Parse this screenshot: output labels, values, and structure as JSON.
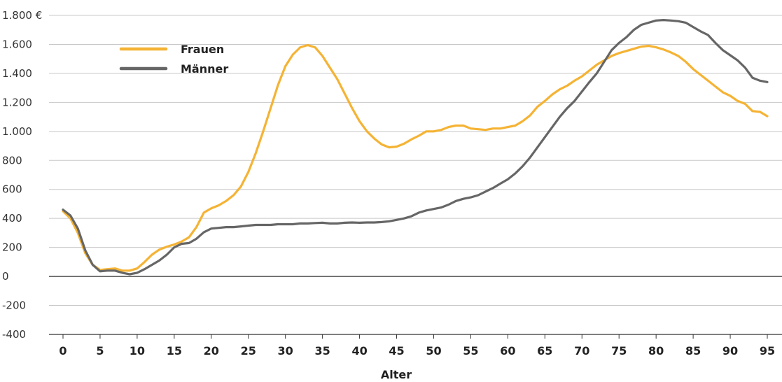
{
  "chart_data": {
    "type": "line",
    "title": "",
    "xlabel": "Alter",
    "ylabel": "",
    "ylim": [
      -400,
      1800
    ],
    "yticks": [
      -400,
      -200,
      0,
      200,
      400,
      600,
      800,
      1000,
      1200,
      1400,
      1600,
      1800
    ],
    "ytick_labels": [
      "-400",
      "-200",
      "0",
      "200",
      "400",
      "600",
      "800",
      "1.000",
      "1.200",
      "1.400",
      "1.600",
      "1.800 €"
    ],
    "xlim": [
      0,
      95
    ],
    "xticks": [
      0,
      5,
      10,
      15,
      20,
      25,
      30,
      35,
      40,
      45,
      50,
      55,
      60,
      65,
      70,
      75,
      80,
      85,
      90,
      95
    ],
    "xtick_labels": [
      "0",
      "5",
      "10",
      "15",
      "20",
      "25",
      "30",
      "35",
      "40",
      "45",
      "50",
      "55",
      "60",
      "65",
      "70",
      "75",
      "80",
      "85",
      "90",
      "95"
    ],
    "grid": "horizontal",
    "legend_position": "top-left",
    "series": [
      {
        "name": "Frauen",
        "color": "#f5b334",
        "x": [
          0,
          1,
          2,
          3,
          4,
          5,
          6,
          7,
          8,
          9,
          10,
          11,
          12,
          13,
          14,
          15,
          16,
          17,
          18,
          19,
          20,
          21,
          22,
          23,
          24,
          25,
          26,
          27,
          28,
          29,
          30,
          31,
          32,
          33,
          34,
          35,
          36,
          37,
          38,
          39,
          40,
          41,
          42,
          43,
          44,
          45,
          46,
          47,
          48,
          49,
          50,
          51,
          52,
          53,
          54,
          55,
          56,
          57,
          58,
          59,
          60,
          61,
          62,
          63,
          64,
          65,
          66,
          67,
          68,
          69,
          70,
          71,
          72,
          73,
          74,
          75,
          76,
          77,
          78,
          79,
          80,
          81,
          82,
          83,
          84,
          85,
          86,
          87,
          88,
          89,
          90,
          91,
          92,
          93,
          94,
          95
        ],
        "values": [
          450,
          400,
          300,
          160,
          80,
          45,
          50,
          55,
          40,
          40,
          55,
          100,
          150,
          185,
          205,
          220,
          240,
          270,
          340,
          440,
          470,
          490,
          520,
          560,
          620,
          720,
          850,
          1000,
          1160,
          1320,
          1450,
          1530,
          1580,
          1595,
          1580,
          1520,
          1440,
          1360,
          1260,
          1160,
          1070,
          1000,
          950,
          910,
          890,
          895,
          915,
          945,
          970,
          1000,
          1000,
          1010,
          1030,
          1040,
          1040,
          1020,
          1015,
          1010,
          1020,
          1020,
          1030,
          1040,
          1070,
          1110,
          1170,
          1210,
          1255,
          1290,
          1315,
          1350,
          1380,
          1420,
          1460,
          1490,
          1520,
          1540,
          1555,
          1570,
          1585,
          1590,
          1580,
          1565,
          1545,
          1520,
          1480,
          1430,
          1390,
          1350,
          1310,
          1270,
          1245,
          1210,
          1190,
          1140,
          1135,
          1105
        ]
      },
      {
        "name": "Männer",
        "color": "#666666",
        "x": [
          0,
          1,
          2,
          3,
          4,
          5,
          6,
          7,
          8,
          9,
          10,
          11,
          12,
          13,
          14,
          15,
          16,
          17,
          18,
          19,
          20,
          21,
          22,
          23,
          24,
          25,
          26,
          27,
          28,
          29,
          30,
          31,
          32,
          33,
          34,
          35,
          36,
          37,
          38,
          39,
          40,
          41,
          42,
          43,
          44,
          45,
          46,
          47,
          48,
          49,
          50,
          51,
          52,
          53,
          54,
          55,
          56,
          57,
          58,
          59,
          60,
          61,
          62,
          63,
          64,
          65,
          66,
          67,
          68,
          69,
          70,
          71,
          72,
          73,
          74,
          75,
          76,
          77,
          78,
          79,
          80,
          81,
          82,
          83,
          84,
          85,
          86,
          87,
          88,
          89,
          90,
          91,
          92,
          93,
          94,
          95
        ],
        "values": [
          460,
          420,
          330,
          180,
          80,
          35,
          40,
          40,
          25,
          15,
          25,
          50,
          80,
          110,
          150,
          200,
          225,
          230,
          260,
          305,
          330,
          335,
          340,
          340,
          345,
          350,
          355,
          355,
          355,
          360,
          360,
          360,
          365,
          365,
          368,
          370,
          365,
          365,
          370,
          372,
          370,
          372,
          372,
          375,
          380,
          390,
          400,
          415,
          440,
          455,
          465,
          475,
          495,
          520,
          535,
          545,
          560,
          585,
          610,
          640,
          670,
          710,
          760,
          820,
          890,
          960,
          1030,
          1100,
          1160,
          1210,
          1275,
          1340,
          1400,
          1480,
          1560,
          1610,
          1650,
          1700,
          1735,
          1750,
          1765,
          1768,
          1765,
          1760,
          1750,
          1720,
          1690,
          1665,
          1610,
          1560,
          1525,
          1490,
          1440,
          1370,
          1350,
          1340
        ]
      }
    ]
  }
}
